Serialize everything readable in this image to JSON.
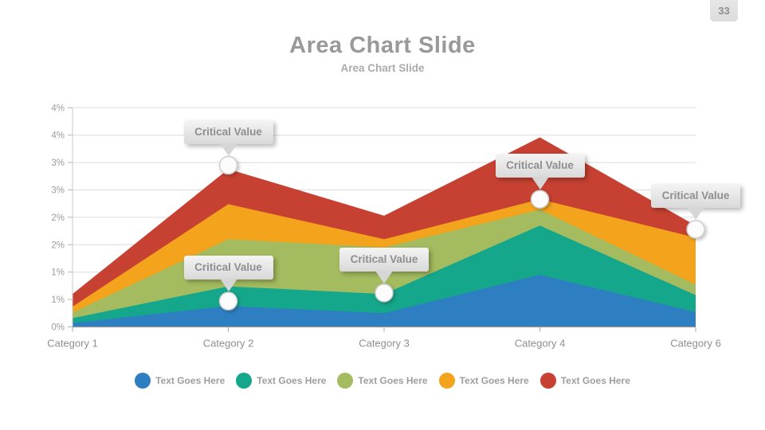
{
  "slide": {
    "page_number": "33",
    "title": "Area Chart Slide",
    "subtitle": "Area Chart Slide"
  },
  "chart_data": {
    "type": "area",
    "stacked": true,
    "title": "Area Chart Slide",
    "categories": [
      "Category 1",
      "Category 2",
      "Category 3",
      "Category 4",
      "Category 6"
    ],
    "y_axis": {
      "min": 0,
      "max": 4,
      "tick_step": 0.5,
      "unit": "%"
    },
    "y_tick_labels_bottom_to_top": [
      "0%",
      "1%",
      "1%",
      "2%",
      "2%",
      "3%",
      "3%",
      "4%",
      "4%"
    ],
    "grid": "horizontal-only",
    "legend_position": "bottom",
    "series": [
      {
        "name": "Text Goes Here",
        "color": "#2d7fc1",
        "values": [
          0.07,
          0.38,
          0.25,
          0.95,
          0.27
        ]
      },
      {
        "name": "Text Goes Here",
        "color": "#15a78b",
        "values": [
          0.09,
          0.36,
          0.35,
          0.9,
          0.31
        ]
      },
      {
        "name": "Text Goes Here",
        "color": "#a4bb5f",
        "values": [
          0.1,
          0.86,
          0.85,
          0.29,
          0.19
        ]
      },
      {
        "name": "Text Goes Here",
        "color": "#f3a41c",
        "values": [
          0.11,
          0.64,
          0.15,
          0.19,
          0.86
        ]
      },
      {
        "name": "Text Goes Here",
        "color": "#c64131",
        "values": [
          0.23,
          0.64,
          0.43,
          1.13,
          0.22
        ]
      }
    ],
    "markers": [
      {
        "label": "Critical Value",
        "category_index": 1,
        "value": 2.95
      },
      {
        "label": "Critical Value",
        "category_index": 1,
        "value": 0.47
      },
      {
        "label": "Critical Value",
        "category_index": 2,
        "value": 0.62
      },
      {
        "label": "Critical Value",
        "category_index": 3,
        "value": 2.33
      },
      {
        "label": "Critical Value",
        "category_index": 4,
        "value": 1.78
      }
    ],
    "colors": {
      "gridline": "#dcdcdc",
      "axis_left": "#c8c8c8",
      "axis_bottom": "#8f8f8f",
      "tick_text": "#9c9c9c",
      "marker_fill": "#fcfcfc",
      "marker_stroke": "#cfcfcf"
    }
  }
}
